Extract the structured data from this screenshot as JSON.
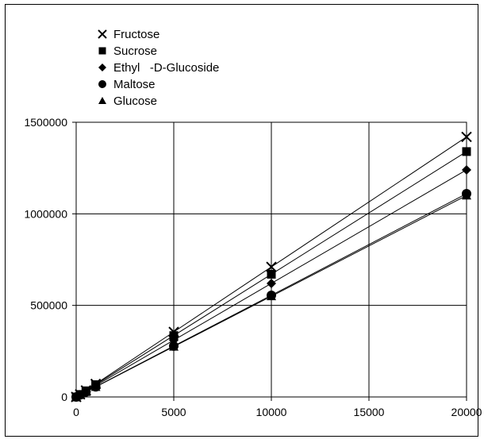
{
  "chart_data": {
    "type": "line",
    "title": "",
    "xlabel": "",
    "ylabel": "",
    "xlim": [
      0,
      20000
    ],
    "ylim": [
      0,
      1500000
    ],
    "x_ticks": [
      "0",
      "5000",
      "10000",
      "15000",
      "20000"
    ],
    "y_ticks": [
      "0",
      "500000",
      "1000000",
      "1500000"
    ],
    "grid": true,
    "legend_position": "top-left",
    "x": [
      0,
      200,
      500,
      1000,
      5000,
      10000,
      20000
    ],
    "series": [
      {
        "name": "Fructose",
        "marker": "x",
        "values": [
          0,
          14200,
          35500,
          71000,
          355000,
          710000,
          1420000
        ]
      },
      {
        "name": "Sucrose",
        "marker": "square",
        "values": [
          0,
          13400,
          33500,
          67000,
          335000,
          670000,
          1340000
        ]
      },
      {
        "name": "Ethyl   -D-Glucoside",
        "marker": "diamond",
        "values": [
          0,
          12400,
          31000,
          62000,
          310000,
          620000,
          1240000
        ]
      },
      {
        "name": "Maltose",
        "marker": "circle",
        "values": [
          0,
          11100,
          27800,
          55500,
          278000,
          555000,
          1110000
        ]
      },
      {
        "name": "Glucose",
        "marker": "triangle",
        "values": [
          0,
          11000,
          27500,
          55000,
          275000,
          550000,
          1100000
        ]
      }
    ],
    "line_color": "#000000",
    "marker_color": "#000000"
  }
}
